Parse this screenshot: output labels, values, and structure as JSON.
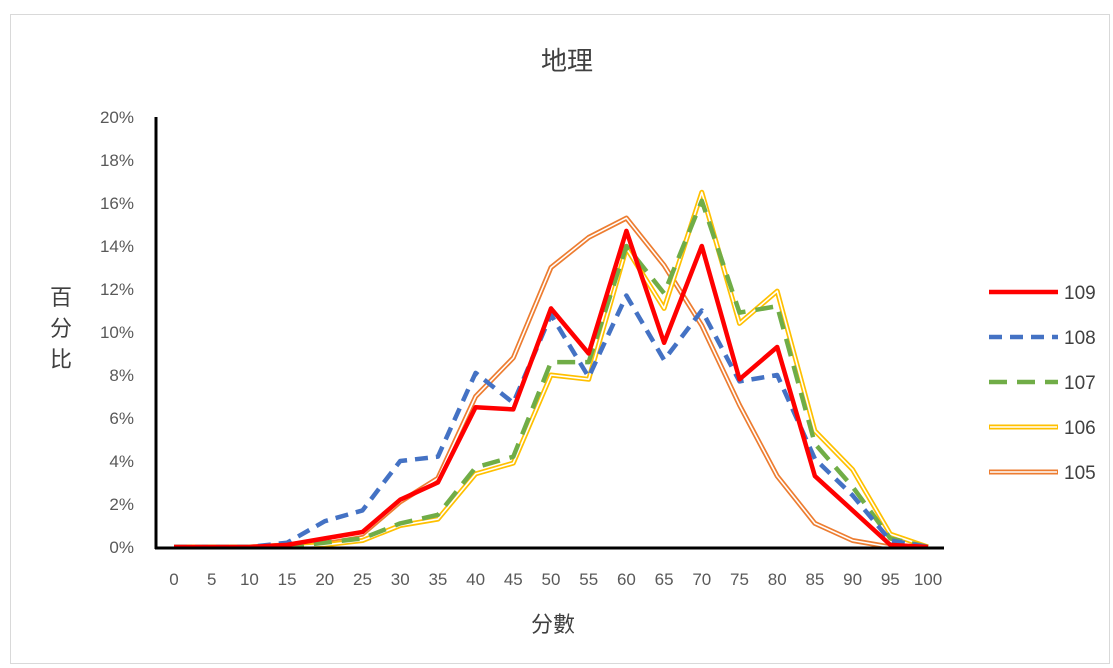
{
  "chart_data": {
    "type": "line",
    "title": "地理",
    "xlabel": "分數",
    "ylabel": "百分比",
    "x": [
      0,
      5,
      10,
      15,
      20,
      25,
      30,
      35,
      40,
      45,
      50,
      55,
      60,
      65,
      70,
      75,
      80,
      85,
      90,
      95,
      100
    ],
    "ylim": [
      0,
      20
    ],
    "y_ticks": [
      "0%",
      "2%",
      "4%",
      "6%",
      "8%",
      "10%",
      "12%",
      "14%",
      "16%",
      "18%",
      "20%"
    ],
    "legend_position": "right",
    "series": [
      {
        "name": "109",
        "color": "#ff0000",
        "style": "solid",
        "values": [
          0,
          0,
          0,
          0.1,
          0.4,
          0.7,
          2.2,
          3.0,
          6.5,
          6.4,
          11.1,
          9.0,
          14.7,
          9.5,
          14.0,
          7.8,
          9.3,
          3.3,
          1.7,
          0.1,
          0
        ]
      },
      {
        "name": "108",
        "color": "#4472c4",
        "style": "dashed",
        "values": [
          0,
          0,
          0,
          0.2,
          1.2,
          1.7,
          4.0,
          4.2,
          8.1,
          6.7,
          10.8,
          7.9,
          11.7,
          8.7,
          11.0,
          7.7,
          8.0,
          4.1,
          2.4,
          0.3,
          0
        ]
      },
      {
        "name": "107",
        "color": "#70ad47",
        "style": "dashed",
        "values": [
          0,
          0,
          0,
          0,
          0.2,
          0.4,
          1.1,
          1.5,
          3.7,
          4.2,
          8.6,
          8.6,
          14.0,
          11.8,
          16.1,
          10.9,
          11.2,
          4.8,
          2.8,
          0.4,
          0
        ]
      },
      {
        "name": "106",
        "color": "#ffc000",
        "style": "double",
        "values": [
          0,
          0,
          0,
          0,
          0.1,
          0.3,
          1.0,
          1.3,
          3.4,
          3.9,
          8.0,
          7.8,
          13.9,
          11.1,
          16.5,
          10.4,
          11.9,
          5.4,
          3.6,
          0.6,
          0
        ]
      },
      {
        "name": "105",
        "color": "#ed7d31",
        "style": "double",
        "values": [
          0,
          0,
          0,
          0.1,
          0.3,
          0.6,
          2.1,
          3.2,
          7.0,
          8.8,
          13.0,
          14.4,
          15.3,
          13.1,
          10.3,
          6.6,
          3.3,
          1.1,
          0.3,
          0,
          0
        ]
      }
    ]
  }
}
